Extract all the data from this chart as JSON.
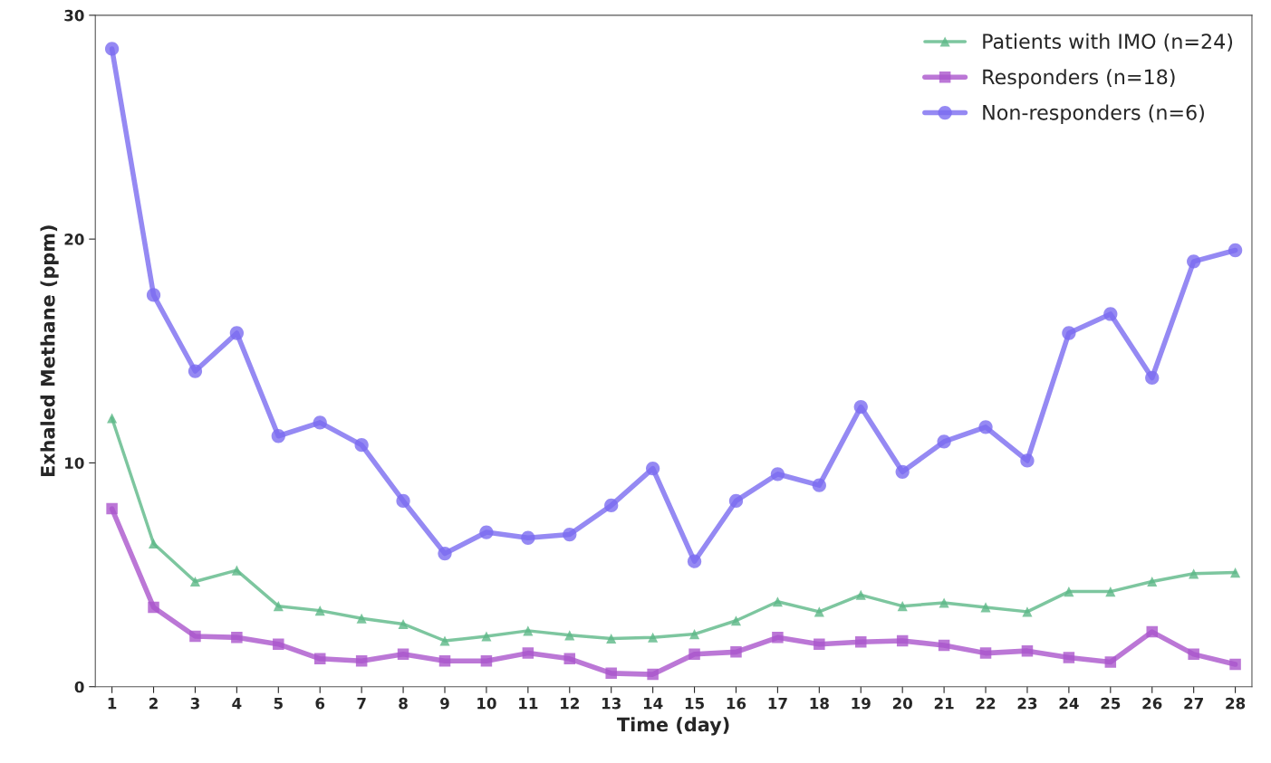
{
  "chart_data": {
    "type": "line",
    "xlabel": "Time (day)",
    "ylabel": "Exhaled Methane (ppm)",
    "categories": [
      "1",
      "2",
      "3",
      "4",
      "5",
      "6",
      "7",
      "8",
      "9",
      "10",
      "11",
      "12",
      "13",
      "14",
      "15",
      "16",
      "17",
      "18",
      "19",
      "20",
      "21",
      "22",
      "23",
      "24",
      "25",
      "26",
      "27",
      "28"
    ],
    "ylim": [
      0,
      30
    ],
    "yticks": [
      0,
      10,
      20,
      30
    ],
    "grid": false,
    "legend": "top right",
    "series": [
      {
        "name": "Patients with IMO (n=24)",
        "color": "#5cb887",
        "marker": "triangle",
        "values": [
          12.0,
          6.4,
          4.7,
          5.2,
          3.6,
          3.4,
          3.05,
          2.8,
          2.05,
          2.25,
          2.5,
          2.3,
          2.15,
          2.2,
          2.35,
          2.95,
          3.8,
          3.35,
          4.1,
          3.6,
          3.75,
          3.55,
          3.35,
          4.25,
          4.25,
          4.7,
          5.05,
          5.1
        ]
      },
      {
        "name": "Responders (n=18)",
        "color": "#aa55cc",
        "marker": "square",
        "values": [
          7.95,
          3.55,
          2.25,
          2.2,
          1.9,
          1.25,
          1.15,
          1.45,
          1.15,
          1.15,
          1.5,
          1.25,
          0.6,
          0.55,
          1.45,
          1.55,
          2.2,
          1.9,
          2.0,
          2.05,
          1.85,
          1.5,
          1.6,
          1.3,
          1.1,
          2.45,
          1.45,
          1.0
        ]
      },
      {
        "name": "Non-responders (n=6)",
        "color": "#7a6cf0",
        "marker": "circle",
        "values": [
          28.5,
          17.5,
          14.1,
          15.8,
          11.2,
          11.8,
          10.8,
          8.3,
          5.95,
          6.9,
          6.65,
          6.8,
          8.1,
          9.75,
          5.6,
          8.3,
          9.5,
          9.0,
          12.5,
          9.6,
          10.95,
          11.6,
          10.1,
          15.8,
          16.65,
          13.8,
          19.0,
          19.5
        ]
      }
    ]
  }
}
